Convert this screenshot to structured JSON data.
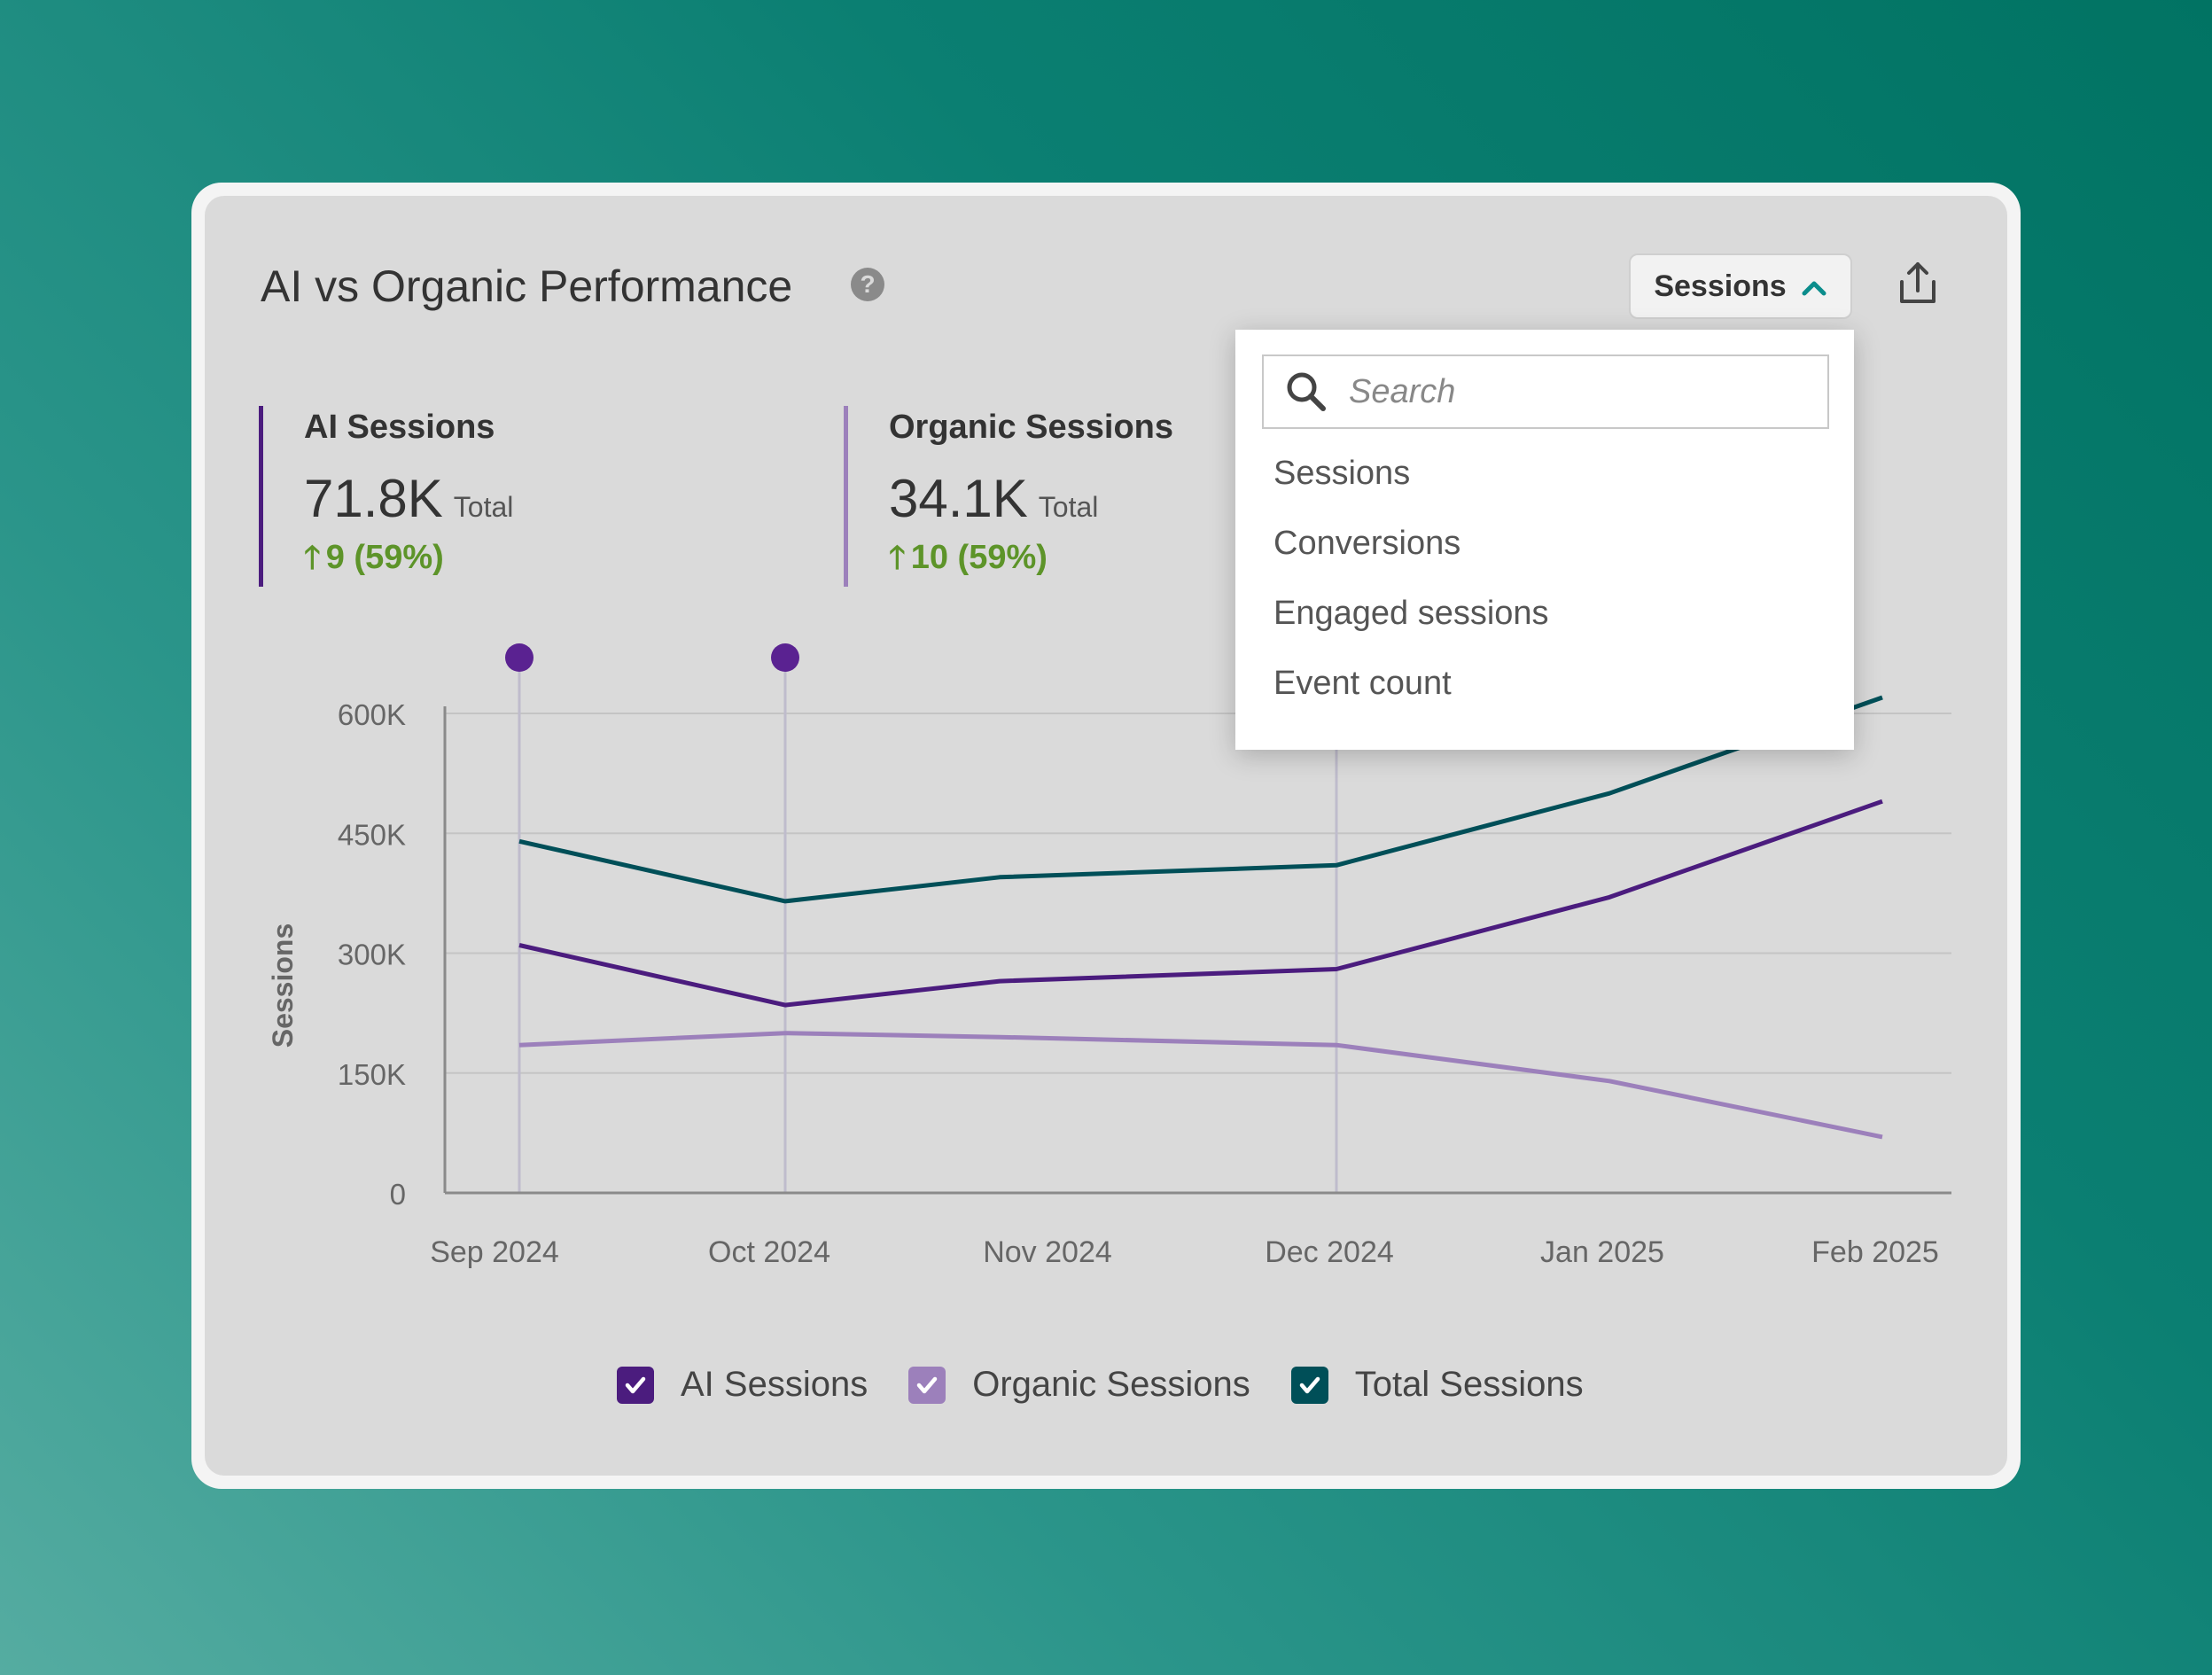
{
  "card": {
    "title": "AI vs Organic Performance",
    "help_icon": "help-circle-icon",
    "metric_selector": {
      "selected": "Sessions"
    },
    "export_icon": "share-export-icon"
  },
  "metrics": [
    {
      "label": "AI Sessions",
      "value": "71.8K",
      "suffix": "Total",
      "change": "9 (59%)",
      "color": "#4b1c7e"
    },
    {
      "label": "Organic Sessions",
      "value": "34.1K",
      "suffix": "Total",
      "change": "10 (59%)",
      "color": "#9c80bb"
    }
  ],
  "dropdown": {
    "search_placeholder": "Search",
    "options": [
      "Sessions",
      "Conversions",
      "Engaged sessions",
      "Event count"
    ]
  },
  "legend": [
    {
      "label": "AI Sessions",
      "checked": true,
      "color": "#4b1c7e"
    },
    {
      "label": "Organic Sessions",
      "checked": true,
      "color": "#9c80bb"
    },
    {
      "label": "Total Sessions",
      "checked": true,
      "color": "#004f58"
    }
  ],
  "chart_data": {
    "type": "line",
    "title": "",
    "xlabel": "",
    "ylabel": "Sessions",
    "categories": [
      "Sep 2024",
      "Oct 2024",
      "Nov 2024",
      "Dec 2024",
      "Jan 2025",
      "Feb 2025"
    ],
    "x_tick_labels": [
      "Sep 2024",
      "Oct 2024",
      "Nov 2024",
      "Dec 2024",
      "Jan 2025",
      "Feb 2025"
    ],
    "y_tick_labels": [
      "0",
      "150K",
      "300K",
      "450K",
      "600K"
    ],
    "ylim": [
      0,
      600000
    ],
    "grid": true,
    "annotation_markers_at": [
      "Sep 2024",
      "Oct 2024",
      "Dec 2024"
    ],
    "series": [
      {
        "name": "Total Sessions",
        "color": "#004f58",
        "values": [
          440000,
          365000,
          395000,
          410000,
          500000,
          620000
        ]
      },
      {
        "name": "AI Sessions",
        "color": "#4b1c7e",
        "values": [
          310000,
          235000,
          265000,
          280000,
          370000,
          490000
        ]
      },
      {
        "name": "Organic Sessions",
        "color": "#9c80bb",
        "values": [
          185000,
          200000,
          195000,
          185000,
          140000,
          70000
        ]
      }
    ]
  }
}
